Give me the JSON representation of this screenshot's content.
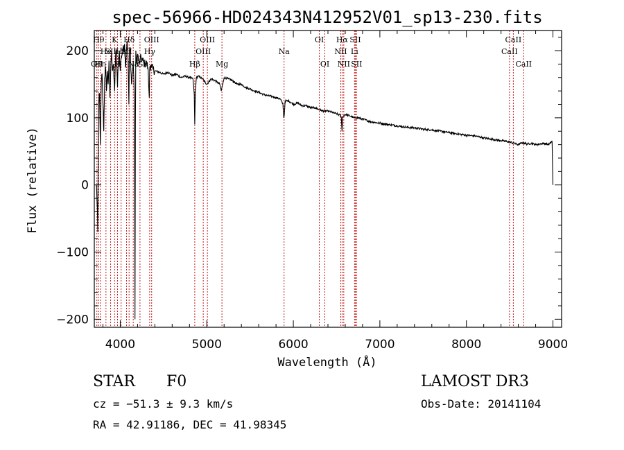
{
  "chart_data": {
    "type": "line",
    "title": "spec-56966-HD024343N412952V01_sp13-230.fits",
    "xlabel": "Wavelength (Å)",
    "ylabel": "Flux (relative)",
    "xlim": [
      3700,
      9100
    ],
    "ylim": [
      -212,
      230
    ],
    "xticks": [
      4000,
      5000,
      6000,
      7000,
      8000,
      9000
    ],
    "yticks": [
      -200,
      -100,
      0,
      100,
      200
    ],
    "xtick_labels": [
      "4000",
      "5000",
      "6000",
      "7000",
      "8000",
      "9000"
    ],
    "ytick_labels": [
      "−200",
      "−100",
      "0",
      "100",
      "200"
    ],
    "grid": false,
    "series": [
      {
        "name": "spectrum",
        "x": [
          3725,
          3735,
          3740,
          3745,
          3750,
          3760,
          3770,
          3780,
          3790,
          3800,
          3810,
          3820,
          3830,
          3840,
          3850,
          3860,
          3870,
          3880,
          3890,
          3900,
          3910,
          3920,
          3934,
          3945,
          3955,
          3968,
          3980,
          3990,
          4000,
          4010,
          4030,
          4050,
          4060,
          4070,
          4080,
          4090,
          4100,
          4105,
          4115,
          4130,
          4150,
          4165,
          4170,
          4175,
          4180,
          4190,
          4200,
          4220,
          4240,
          4260,
          4280,
          4300,
          4320,
          4335,
          4340,
          4345,
          4360,
          4380,
          4400,
          4450,
          4500,
          4550,
          4600,
          4650,
          4700,
          4750,
          4800,
          4840,
          4855,
          4861,
          4868,
          4880,
          4900,
          4950,
          5000,
          5050,
          5100,
          5150,
          5167,
          5175,
          5185,
          5200,
          5250,
          5300,
          5350,
          5400,
          5450,
          5500,
          5550,
          5600,
          5650,
          5700,
          5750,
          5800,
          5850,
          5880,
          5890,
          5896,
          5905,
          5950,
          6000,
          6050,
          6100,
          6150,
          6200,
          6250,
          6300,
          6350,
          6400,
          6450,
          6500,
          6540,
          6555,
          6563,
          6570,
          6580,
          6600,
          6650,
          6700,
          6750,
          6800,
          6850,
          6900,
          6950,
          7000,
          7100,
          7200,
          7300,
          7400,
          7500,
          7600,
          7700,
          7800,
          7900,
          8000,
          8100,
          8200,
          8300,
          8400,
          8500,
          8600,
          8650,
          8700,
          8750,
          8800,
          8850,
          8900,
          8950,
          8990,
          9000
        ],
        "values": [
          0,
          -35,
          -70,
          40,
          120,
          135,
          60,
          150,
          165,
          120,
          80,
          160,
          175,
          140,
          170,
          150,
          185,
          130,
          172,
          200,
          170,
          180,
          140,
          190,
          200,
          145,
          190,
          200,
          170,
          190,
          200,
          210,
          175,
          200,
          215,
          185,
          120,
          195,
          205,
          150,
          185,
          120,
          -200,
          90,
          200,
          180,
          195,
          180,
          190,
          185,
          180,
          182,
          175,
          130,
          172,
          178,
          175,
          172,
          170,
          168,
          165,
          168,
          163,
          165,
          160,
          162,
          160,
          158,
          135,
          90,
          140,
          160,
          162,
          158,
          150,
          158,
          155,
          150,
          140,
          145,
          150,
          160,
          158,
          155,
          150,
          150,
          145,
          143,
          140,
          138,
          135,
          133,
          132,
          130,
          128,
          120,
          100,
          105,
          125,
          125,
          120,
          122,
          118,
          118,
          115,
          115,
          112,
          110,
          110,
          108,
          106,
          104,
          100,
          80,
          100,
          103,
          105,
          103,
          100,
          100,
          98,
          96,
          94,
          93,
          92,
          90,
          88,
          86,
          85,
          83,
          82,
          80,
          78,
          76,
          74,
          73,
          70,
          68,
          66,
          64,
          60,
          63,
          61,
          62,
          60,
          61,
          62,
          60,
          65,
          0
        ]
      }
    ],
    "lines": [
      {
        "x": 3730,
        "label": "OII",
        "row": 3
      },
      {
        "x": 3750,
        "label": "Hθ",
        "row": 1
      },
      {
        "x": 3770,
        "label": "Hη",
        "row": 3
      },
      {
        "x": 3835,
        "label": "He",
        "row": 2
      },
      {
        "x": 3889,
        "label": "SII",
        "row": 2
      },
      {
        "x": 3934,
        "label": "K",
        "row": 1
      },
      {
        "x": 3968,
        "label": "H",
        "row": 3
      },
      {
        "x": 4010,
        "label": "Hε",
        "row": 2
      },
      {
        "x": 4073,
        "label": "SII",
        "row": 2
      },
      {
        "x": 4102,
        "label": "Hδ",
        "row": 1
      },
      {
        "x": 4150,
        "label": "Na",
        "row": 3
      },
      {
        "x": 4228,
        "label": "G",
        "row": 3
      },
      {
        "x": 4340,
        "label": "Hγ",
        "row": 2
      },
      {
        "x": 4363,
        "label": "OIII",
        "row": 1
      },
      {
        "x": 4861,
        "label": "Hβ",
        "row": 3
      },
      {
        "x": 4959,
        "label": "OIII",
        "row": 2
      },
      {
        "x": 5007,
        "label": "OIII",
        "row": 1
      },
      {
        "x": 5175,
        "label": "Mg",
        "row": 3
      },
      {
        "x": 5893,
        "label": "Na",
        "row": 2
      },
      {
        "x": 6300,
        "label": "OI",
        "row": 1
      },
      {
        "x": 6364,
        "label": "OI",
        "row": 3
      },
      {
        "x": 6548,
        "label": "NII",
        "row": 2
      },
      {
        "x": 6563,
        "label": "Hα",
        "row": 1
      },
      {
        "x": 6583,
        "label": "NII",
        "row": 3
      },
      {
        "x": 6707,
        "label": "Li",
        "row": 2
      },
      {
        "x": 6716,
        "label": "SII",
        "row": 1
      },
      {
        "x": 6731,
        "label": "SII",
        "row": 3
      },
      {
        "x": 8498,
        "label": "CaII",
        "row": 2
      },
      {
        "x": 8542,
        "label": "CaII",
        "row": 1
      },
      {
        "x": 8662,
        "label": "CaII",
        "row": 3
      }
    ]
  },
  "info": {
    "object_class": "STAR",
    "subclass": "F0",
    "cz": "cz = −51.3 ± 9.3 km/s",
    "coords": "RA =  42.91186, DEC =  41.98345",
    "survey": "LAMOST DR3",
    "obs_date": "Obs-Date: 20141104"
  }
}
